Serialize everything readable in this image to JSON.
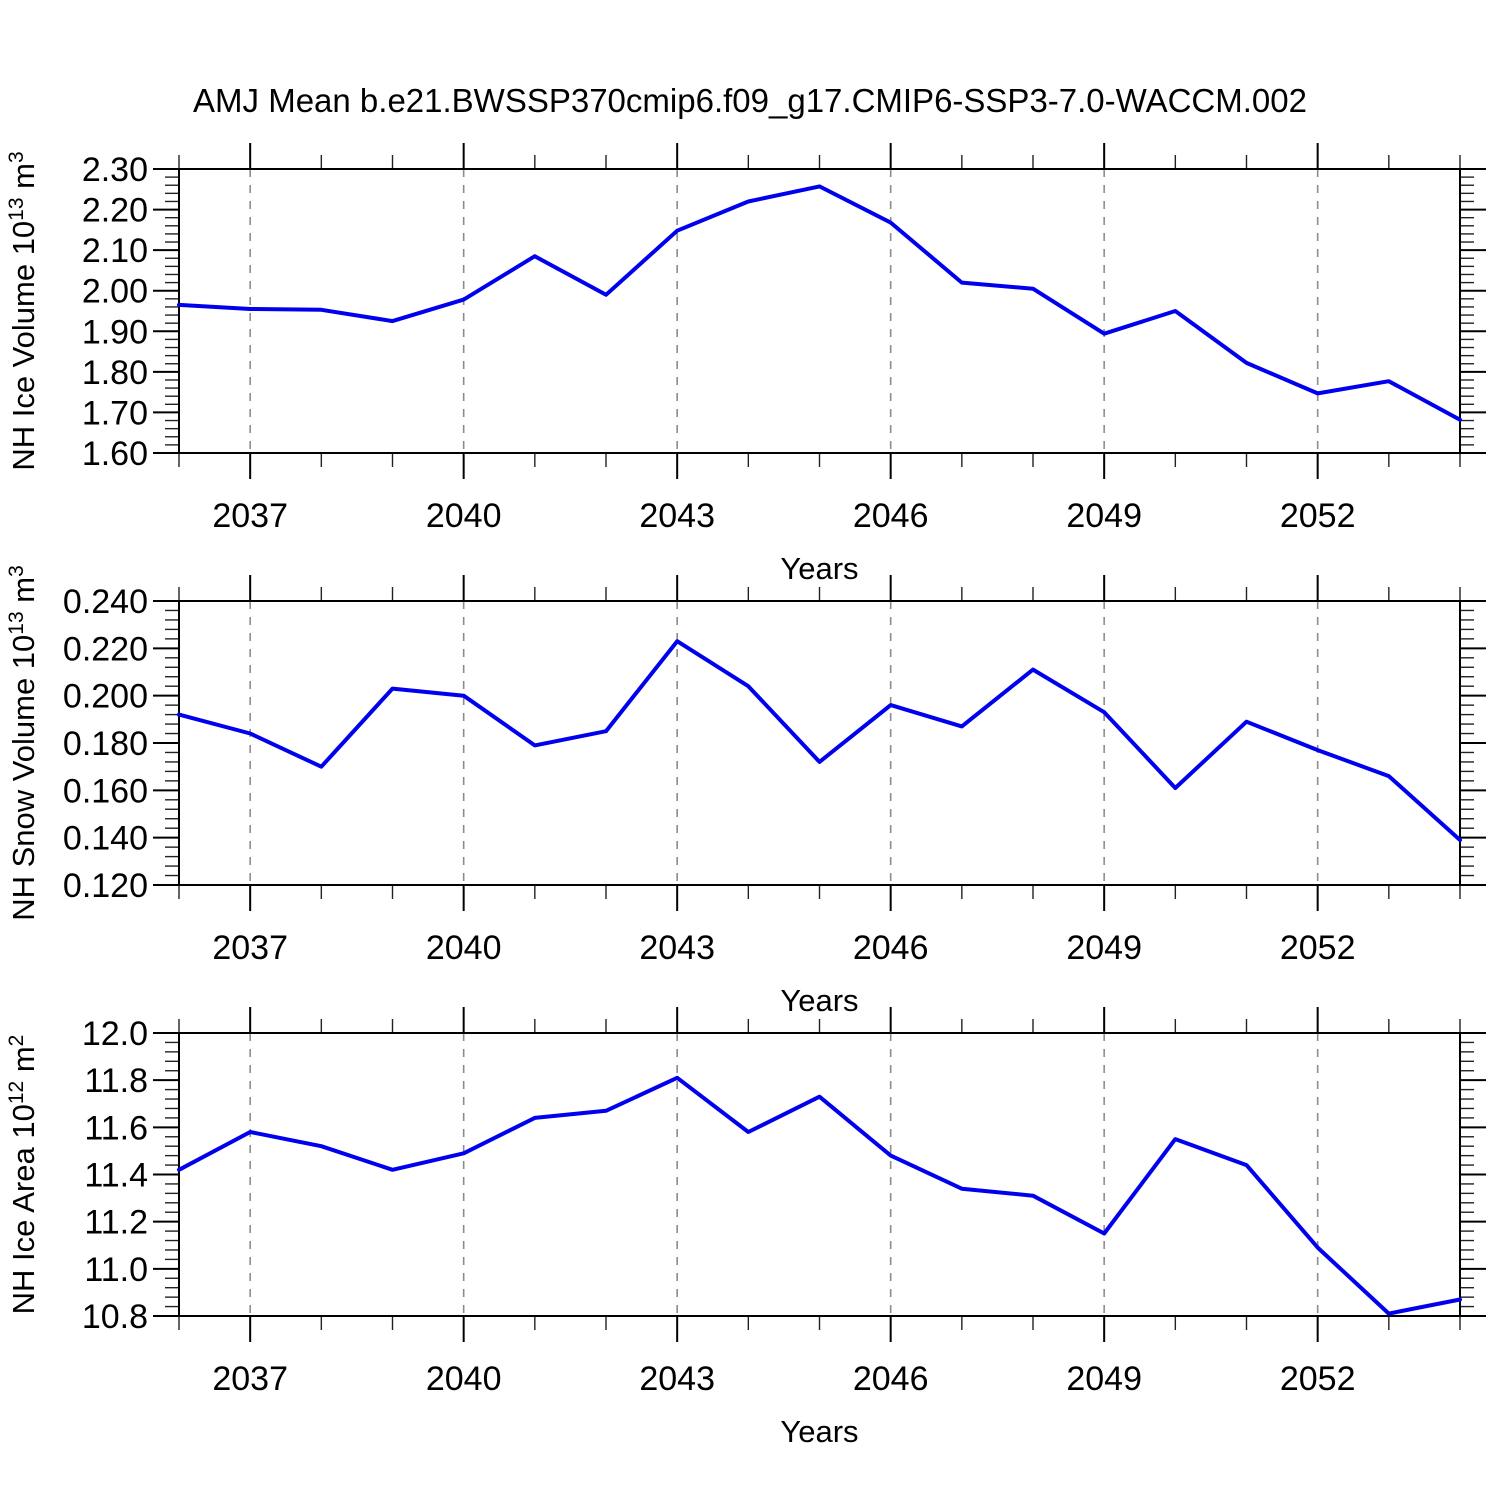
{
  "title": "AMJ Mean b.e21.BWSSP370cmip6.f09_g17.CMIP6-SSP3-7.0-WACCM.002",
  "colors": {
    "line": "#0000ee",
    "grid": "#8c8c8c",
    "axis": "#000000",
    "minor_tick": "#222222",
    "text": "#000000",
    "background": "#ffffff"
  },
  "chart_data": [
    {
      "type": "line",
      "name": "nh-ice-volume",
      "xlabel": "Years",
      "ylabel": "NH Ice Volume 10^13 m^3",
      "ylabel_parts": [
        {
          "t": "NH Ice Volume 10"
        },
        {
          "t": "13",
          "sup": true
        },
        {
          "t": " m"
        },
        {
          "t": "3",
          "sup": true
        }
      ],
      "x": [
        2036,
        2037,
        2038,
        2039,
        2040,
        2041,
        2042,
        2043,
        2044,
        2045,
        2046,
        2047,
        2048,
        2049,
        2050,
        2051,
        2052,
        2053,
        2054
      ],
      "values": [
        1.965,
        1.955,
        1.953,
        1.925,
        1.978,
        2.085,
        1.99,
        2.148,
        2.22,
        2.257,
        2.168,
        2.02,
        2.005,
        1.894,
        1.95,
        1.822,
        1.747,
        1.777,
        1.682
      ],
      "xlim": [
        2036,
        2054
      ],
      "ylim": [
        1.6,
        2.3
      ],
      "x_major_ticks": [
        2037,
        2040,
        2043,
        2046,
        2049,
        2052
      ],
      "x_minor_step": 1,
      "y_tick_values": [
        1.6,
        1.7,
        1.8,
        1.9,
        2.0,
        2.1,
        2.2,
        2.3
      ],
      "y_tick_labels": [
        "1.60",
        "1.70",
        "1.80",
        "1.90",
        "2.00",
        "2.10",
        "2.20",
        "2.30"
      ],
      "y_minor_step": 0.02,
      "grid": "vertical-dashed-at-major-x",
      "legend": "none"
    },
    {
      "type": "line",
      "name": "nh-snow-volume",
      "xlabel": "Years",
      "ylabel": "NH Snow Volume 10^13 m^3",
      "ylabel_parts": [
        {
          "t": "NH Snow Volume 10"
        },
        {
          "t": "13",
          "sup": true
        },
        {
          "t": " m"
        },
        {
          "t": "3",
          "sup": true
        }
      ],
      "x": [
        2036,
        2037,
        2038,
        2039,
        2040,
        2041,
        2042,
        2043,
        2044,
        2045,
        2046,
        2047,
        2048,
        2049,
        2050,
        2051,
        2052,
        2053,
        2054
      ],
      "values": [
        0.192,
        0.184,
        0.17,
        0.203,
        0.2,
        0.179,
        0.185,
        0.223,
        0.204,
        0.172,
        0.196,
        0.187,
        0.211,
        0.193,
        0.161,
        0.189,
        0.177,
        0.166,
        0.139
      ],
      "xlim": [
        2036,
        2054
      ],
      "ylim": [
        0.12,
        0.24
      ],
      "x_major_ticks": [
        2037,
        2040,
        2043,
        2046,
        2049,
        2052
      ],
      "x_minor_step": 1,
      "y_tick_values": [
        0.12,
        0.14,
        0.16,
        0.18,
        0.2,
        0.22,
        0.24
      ],
      "y_tick_labels": [
        "0.120",
        "0.140",
        "0.160",
        "0.180",
        "0.200",
        "0.220",
        "0.240"
      ],
      "y_minor_step": 0.004,
      "grid": "vertical-dashed-at-major-x",
      "legend": "none"
    },
    {
      "type": "line",
      "name": "nh-ice-area",
      "xlabel": "Years",
      "ylabel": "NH Ice Area 10^12 m^2",
      "ylabel_parts": [
        {
          "t": "NH Ice Area 10"
        },
        {
          "t": "12",
          "sup": true
        },
        {
          "t": " m"
        },
        {
          "t": "2",
          "sup": true
        }
      ],
      "x": [
        2036,
        2037,
        2038,
        2039,
        2040,
        2041,
        2042,
        2043,
        2044,
        2045,
        2046,
        2047,
        2048,
        2049,
        2050,
        2051,
        2052,
        2053,
        2054
      ],
      "values": [
        11.42,
        11.58,
        11.52,
        11.42,
        11.49,
        11.64,
        11.67,
        11.81,
        11.58,
        11.73,
        11.48,
        11.34,
        11.31,
        11.15,
        11.55,
        11.44,
        11.09,
        10.81,
        10.87
      ],
      "xlim": [
        2036,
        2054
      ],
      "ylim": [
        10.8,
        12.0
      ],
      "x_major_ticks": [
        2037,
        2040,
        2043,
        2046,
        2049,
        2052
      ],
      "x_minor_step": 1,
      "y_tick_values": [
        10.8,
        11.0,
        11.2,
        11.4,
        11.6,
        11.8,
        12.0
      ],
      "y_tick_labels": [
        "10.8",
        "11.0",
        "11.2",
        "11.4",
        "11.6",
        "11.8",
        "12.0"
      ],
      "y_minor_step": 0.04,
      "grid": "vertical-dashed-at-major-x",
      "legend": "none"
    }
  ]
}
